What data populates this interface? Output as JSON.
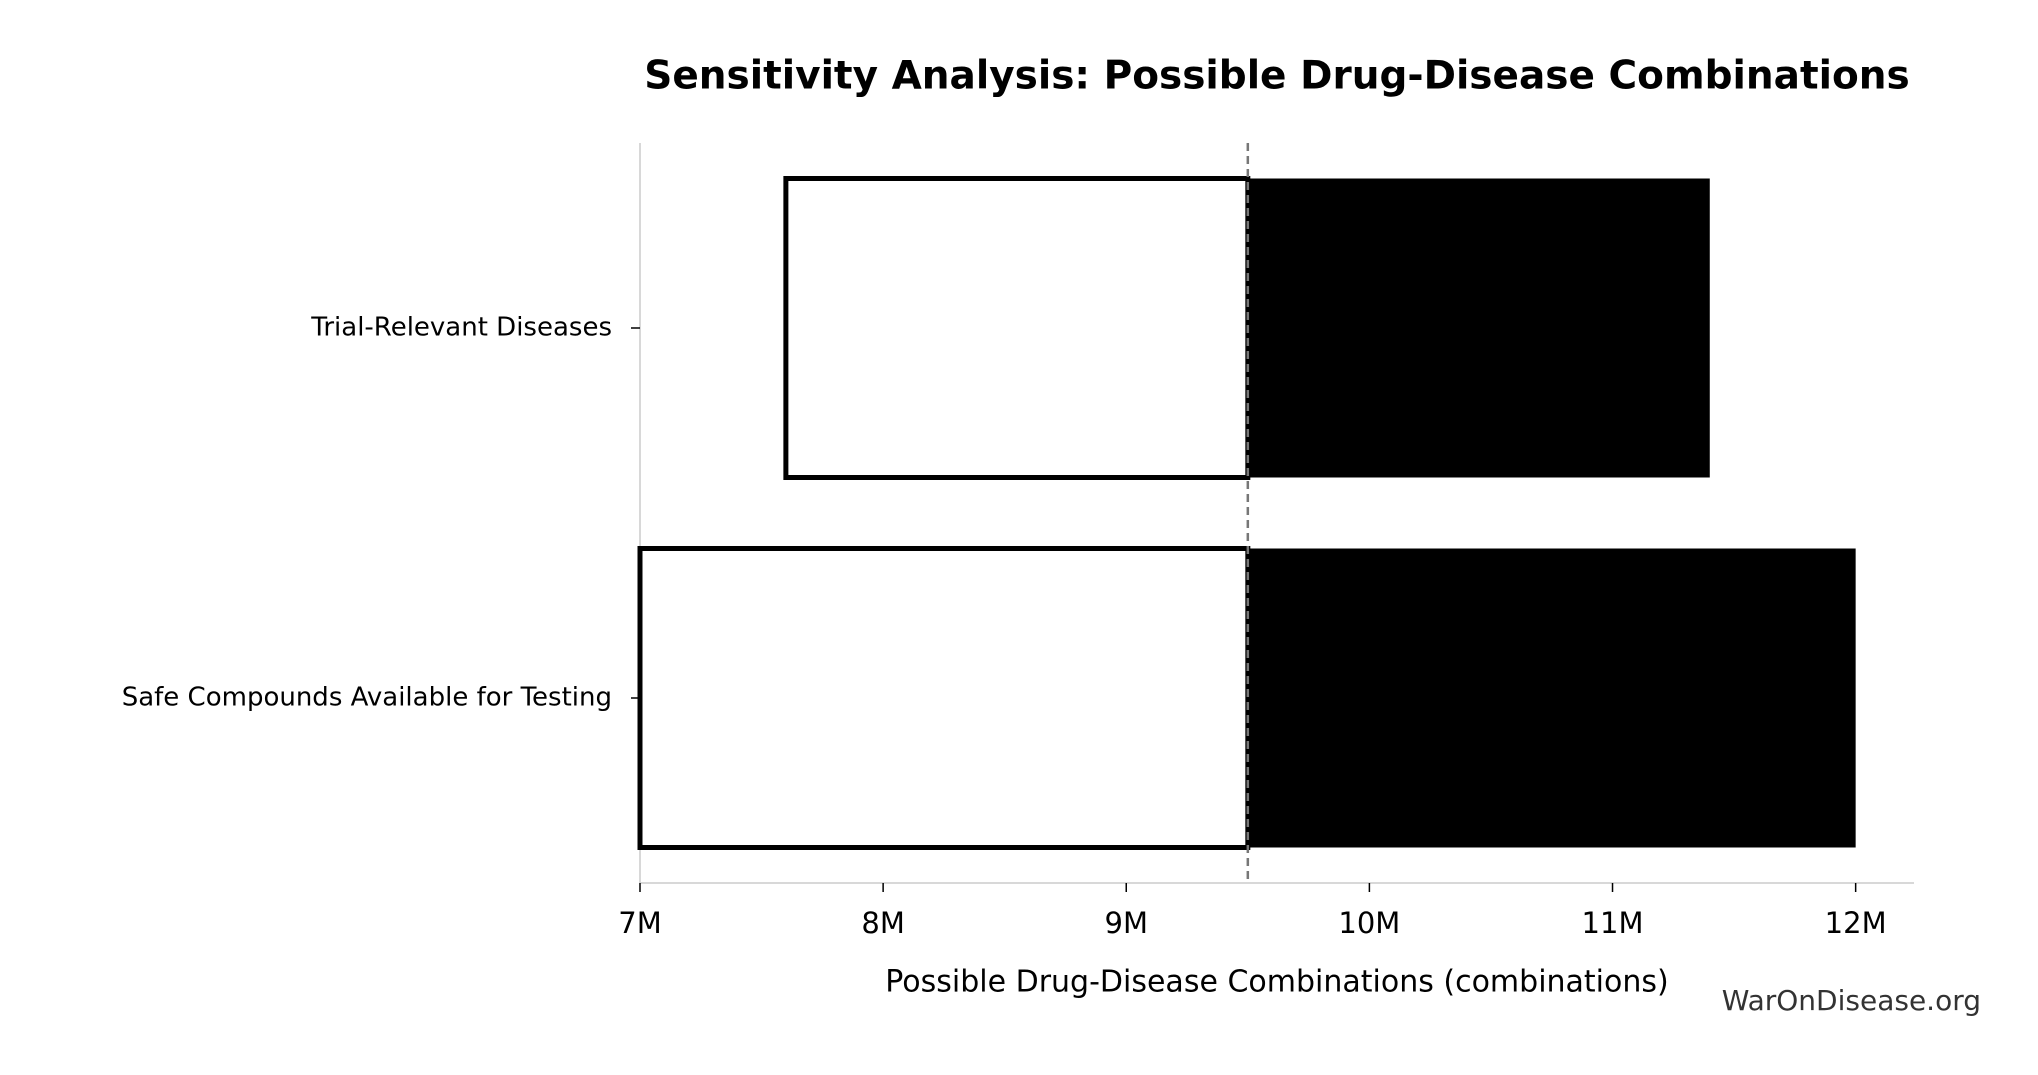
{
  "chart_data": {
    "type": "tornado",
    "title": "Sensitivity Analysis: Possible Drug-Disease Combinations",
    "x_label": "Possible Drug-Disease Combinations (combinations)",
    "watermark": "WarOnDisease.org",
    "categories": [
      "Trial-Relevant Diseases",
      "Safe Compounds Available for Testing"
    ],
    "baseline": 9500000,
    "low": [
      7600000,
      7000000
    ],
    "high": [
      11400000,
      12000000
    ],
    "low_color": "#ffffff",
    "high_color": "#000000",
    "xlim": [
      7000000,
      12240000
    ],
    "xticks": [
      {
        "value": 7000000,
        "label": "7M"
      },
      {
        "value": 8000000,
        "label": "8M"
      },
      {
        "value": 9000000,
        "label": "9M"
      },
      {
        "value": 10000000,
        "label": "10M"
      },
      {
        "value": 11000000,
        "label": "11M"
      },
      {
        "value": 12000000,
        "label": "12M"
      }
    ]
  }
}
